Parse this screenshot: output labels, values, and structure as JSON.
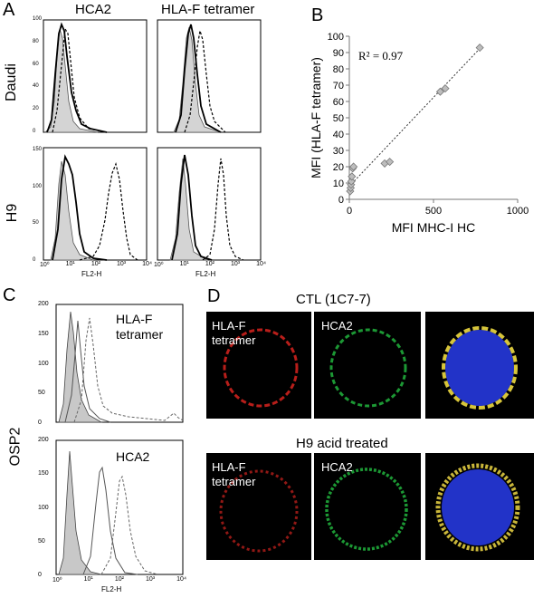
{
  "panelA": {
    "letter": "A",
    "col_titles": [
      "HCA2",
      "HLA-F tetramer"
    ],
    "row_labels": [
      "Daudi",
      "H9"
    ],
    "xlabel": "FL2-H",
    "xticks": [
      "10⁰",
      "10¹",
      "10²",
      "10³",
      "10⁴"
    ],
    "yticks_top": [
      "0",
      "20",
      "40",
      "60",
      "80",
      "100"
    ],
    "yticks_bottom": [
      "0",
      "50",
      "100",
      "150"
    ]
  },
  "panelB": {
    "letter": "B",
    "r2": "R² = 0.97",
    "chart_data": {
      "type": "scatter",
      "xlabel": "MFI MHC-I HC",
      "ylabel": "MFI (HLA-F tetramer)",
      "xlim": [
        0,
        1000
      ],
      "ylim": [
        0,
        100
      ],
      "xticks": [
        "0",
        "500",
        "1000"
      ],
      "yticks": [
        "0",
        "10",
        "20",
        "30",
        "40",
        "50",
        "60",
        "70",
        "80",
        "90",
        "100"
      ],
      "points": [
        {
          "x": 5,
          "y": 5
        },
        {
          "x": 8,
          "y": 7
        },
        {
          "x": 10,
          "y": 9
        },
        {
          "x": 12,
          "y": 11
        },
        {
          "x": 15,
          "y": 14
        },
        {
          "x": 20,
          "y": 19
        },
        {
          "x": 25,
          "y": 20
        },
        {
          "x": 210,
          "y": 22
        },
        {
          "x": 240,
          "y": 23
        },
        {
          "x": 540,
          "y": 66
        },
        {
          "x": 570,
          "y": 68
        },
        {
          "x": 775,
          "y": 93
        }
      ],
      "fit_line": {
        "x": [
          0,
          780
        ],
        "y": [
          8,
          93
        ]
      }
    }
  },
  "panelC": {
    "letter": "C",
    "row_label": "OSP2",
    "titles": [
      "HLA-F tetramer",
      "HCA2"
    ],
    "xlabel": "FL2-H",
    "yticks": [
      "0",
      "50",
      "100",
      "150",
      "200"
    ],
    "xticks": [
      "10⁰",
      "10¹",
      "10²",
      "10³",
      "10⁴"
    ]
  },
  "panelD": {
    "letter": "D",
    "row_titles": [
      "CTL (1C7-7)",
      "H9 acid treated"
    ],
    "channel_labels": [
      "HLA-F tetramer",
      "HCA2"
    ],
    "colors": {
      "red": "#d8231e",
      "green": "#1fa83a",
      "blue": "#2233c8",
      "yellow": "#d7c53a"
    }
  }
}
